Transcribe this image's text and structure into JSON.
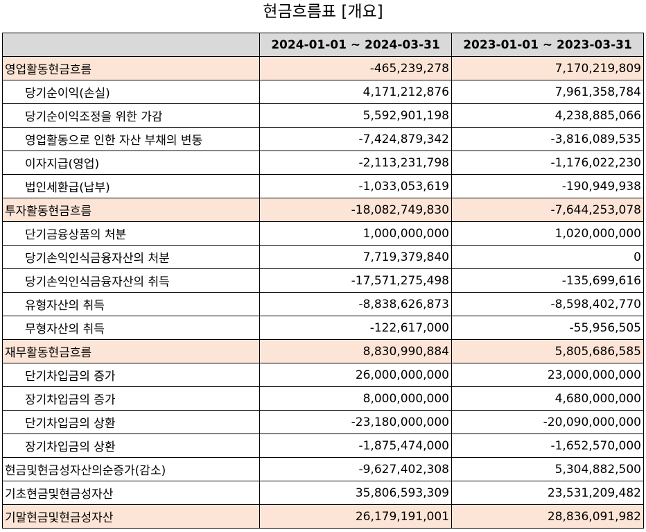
{
  "title": "현금흐름표 [개요]",
  "columns": [
    "",
    "2024-01-01 ~ 2024-03-31",
    "2023-01-01 ~ 2023-03-31"
  ],
  "rows": [
    {
      "label": "영업활동현금흐름",
      "v1": "-465,239,278",
      "v2": "7,170,219,809",
      "level": "section"
    },
    {
      "label": "당기순이익(손실)",
      "v1": "4,171,212,876",
      "v2": "7,961,358,784",
      "level": "sub"
    },
    {
      "label": "당기순이익조정을 위한 가감",
      "v1": "5,592,901,198",
      "v2": "4,238,885,066",
      "level": "sub"
    },
    {
      "label": "영업활동으로 인한 자산 부채의 변동",
      "v1": "-7,424,879,342",
      "v2": "-3,816,089,535",
      "level": "sub"
    },
    {
      "label": "이자지급(영업)",
      "v1": "-2,113,231,798",
      "v2": "-1,176,022,230",
      "level": "sub"
    },
    {
      "label": "법인세환급(납부)",
      "v1": "-1,033,053,619",
      "v2": "-190,949,938",
      "level": "sub"
    },
    {
      "label": "투자활동현금흐름",
      "v1": "-18,082,749,830",
      "v2": "-7,644,253,078",
      "level": "section"
    },
    {
      "label": "단기금융상품의 처분",
      "v1": "1,000,000,000",
      "v2": "1,020,000,000",
      "level": "sub"
    },
    {
      "label": "당기손익인식금융자산의 처분",
      "v1": "7,719,379,840",
      "v2": "0",
      "level": "sub"
    },
    {
      "label": "당기손익인식금융자산의 취득",
      "v1": "-17,571,275,498",
      "v2": "-135,699,616",
      "level": "sub"
    },
    {
      "label": "유형자산의 취득",
      "v1": "-8,838,626,873",
      "v2": "-8,598,402,770",
      "level": "sub"
    },
    {
      "label": "무형자산의 취득",
      "v1": "-122,617,000",
      "v2": "-55,956,505",
      "level": "sub"
    },
    {
      "label": "재무활동현금흐름",
      "v1": "8,830,990,884",
      "v2": "5,805,686,585",
      "level": "section"
    },
    {
      "label": "단기차입금의 증가",
      "v1": "26,000,000,000",
      "v2": "23,000,000,000",
      "level": "sub"
    },
    {
      "label": "장기차입금의 증가",
      "v1": "8,000,000,000",
      "v2": "4,680,000,000",
      "level": "sub"
    },
    {
      "label": "단기차입금의 상환",
      "v1": "-23,180,000,000",
      "v2": "-20,090,000,000",
      "level": "sub"
    },
    {
      "label": "장기차입금의 상환",
      "v1": "-1,875,474,000",
      "v2": "-1,652,570,000",
      "level": "sub"
    },
    {
      "label": "현금및현금성자산의순증가(감소)",
      "v1": "-9,627,402,308",
      "v2": "5,304,882,500",
      "level": "top"
    },
    {
      "label": "기초현금및현금성자산",
      "v1": "35,806,593,309",
      "v2": "23,531,209,482",
      "level": "top"
    },
    {
      "label": "기말현금및현금성자산",
      "v1": "26,179,191,001",
      "v2": "28,836,091,982",
      "level": "section"
    }
  ],
  "colors": {
    "header_bg": "#d9d9d9",
    "highlight_bg": "#fce4d6"
  }
}
